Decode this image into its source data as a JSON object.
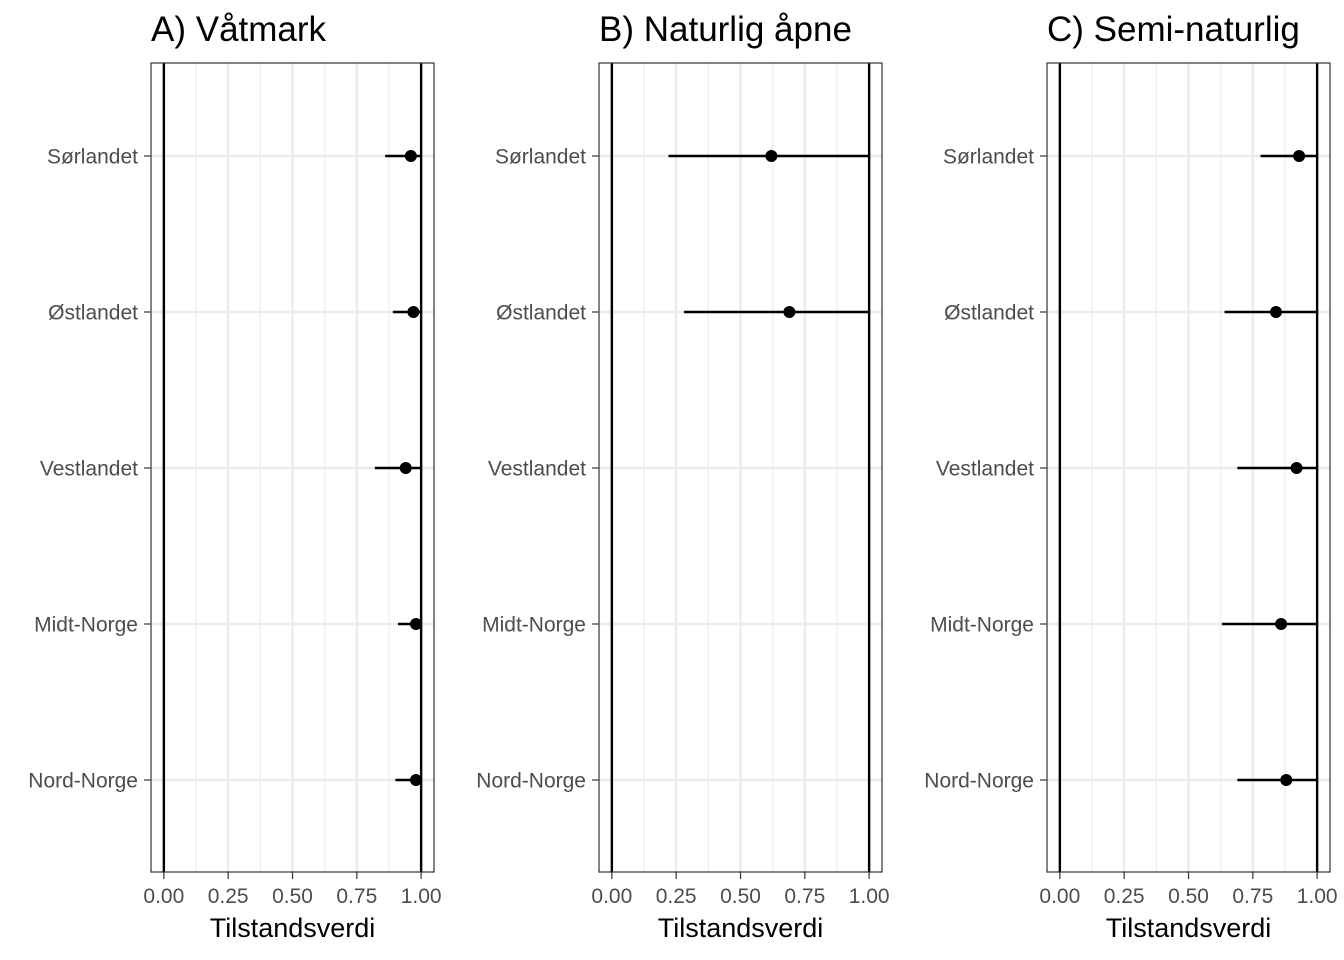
{
  "chart_data": [
    {
      "type": "scatter",
      "title": "A) Våtmark",
      "xlabel": "Tilstandsverdi",
      "ylabel": "",
      "xlim": [
        -0.05,
        1.05
      ],
      "x_ticks": [
        "0.00",
        "0.25",
        "0.50",
        "0.75",
        "1.00"
      ],
      "categories": [
        "Sørlandet",
        "Østlandet",
        "Vestlandet",
        "Midt-Norge",
        "Nord-Norge"
      ],
      "values": [
        0.96,
        0.97,
        0.94,
        0.98,
        0.98
      ],
      "error_low": [
        0.86,
        0.89,
        0.82,
        0.91,
        0.9
      ],
      "error_high": [
        1.0,
        1.0,
        1.0,
        1.0,
        1.0
      ],
      "reference_lines": [
        0,
        1
      ],
      "grid": true,
      "legend": "none"
    },
    {
      "type": "scatter",
      "title": "B) Naturlig åpne",
      "xlabel": "Tilstandsverdi",
      "ylabel": "",
      "xlim": [
        -0.05,
        1.05
      ],
      "x_ticks": [
        "0.00",
        "0.25",
        "0.50",
        "0.75",
        "1.00"
      ],
      "categories": [
        "Sørlandet",
        "Østlandet",
        "Vestlandet",
        "Midt-Norge",
        "Nord-Norge"
      ],
      "values": [
        0.62,
        0.69,
        null,
        null,
        null
      ],
      "error_low": [
        0.22,
        0.28,
        null,
        null,
        null
      ],
      "error_high": [
        1.0,
        1.0,
        null,
        null,
        null
      ],
      "reference_lines": [
        0,
        1
      ],
      "grid": true,
      "legend": "none"
    },
    {
      "type": "scatter",
      "title": "C) Semi-naturlig",
      "xlabel": "Tilstandsverdi",
      "ylabel": "",
      "xlim": [
        -0.05,
        1.05
      ],
      "x_ticks": [
        "0.00",
        "0.25",
        "0.50",
        "0.75",
        "1.00"
      ],
      "categories": [
        "Sørlandet",
        "Østlandet",
        "Vestlandet",
        "Midt-Norge",
        "Nord-Norge"
      ],
      "values": [
        0.93,
        0.84,
        0.92,
        0.86,
        0.88
      ],
      "error_low": [
        0.78,
        0.64,
        0.69,
        0.63,
        0.69
      ],
      "error_high": [
        1.0,
        1.0,
        1.0,
        1.0,
        1.0
      ],
      "reference_lines": [
        0,
        1
      ],
      "grid": true,
      "legend": "none"
    }
  ],
  "colors": {
    "point": "#000000",
    "error_bar": "#000000",
    "reference_line": "#000000",
    "grid": "#ebebeb",
    "panel_border": "#333333",
    "tick_text": "#4d4d4d"
  }
}
